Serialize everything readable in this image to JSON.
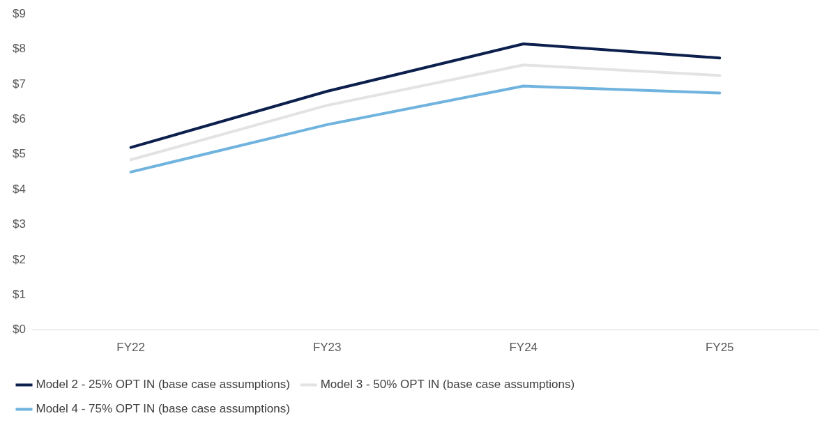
{
  "chart_data": {
    "type": "line",
    "categories": [
      "FY22",
      "FY23",
      "FY24",
      "FY25"
    ],
    "series": [
      {
        "name": "Model 2 - 25% OPT IN (base case assumptions)",
        "color": "#0c1f4d",
        "values": [
          5.2,
          6.8,
          8.15,
          7.75
        ]
      },
      {
        "name": "Model 3 - 50% OPT IN (base case assumptions)",
        "color": "#e3e3e3",
        "values": [
          4.85,
          6.4,
          7.55,
          7.25
        ]
      },
      {
        "name": "Model 4 - 75% OPT IN (base case assumptions)",
        "color": "#6fb3de",
        "values": [
          4.5,
          5.85,
          6.95,
          6.75
        ]
      }
    ],
    "ylim": [
      0,
      9
    ],
    "yticks": [
      {
        "value": 0,
        "label": "$0"
      },
      {
        "value": 1,
        "label": "$1"
      },
      {
        "value": 2,
        "label": "$2"
      },
      {
        "value": 3,
        "label": "$3"
      },
      {
        "value": 4,
        "label": "$4"
      },
      {
        "value": 5,
        "label": "$5"
      },
      {
        "value": 6,
        "label": "$6"
      },
      {
        "value": 7,
        "label": "$7"
      },
      {
        "value": 8,
        "label": "$8"
      },
      {
        "value": 9,
        "label": "$9"
      }
    ],
    "grid": false,
    "legend": "bottom",
    "marker": "none",
    "line_style": "solid"
  }
}
